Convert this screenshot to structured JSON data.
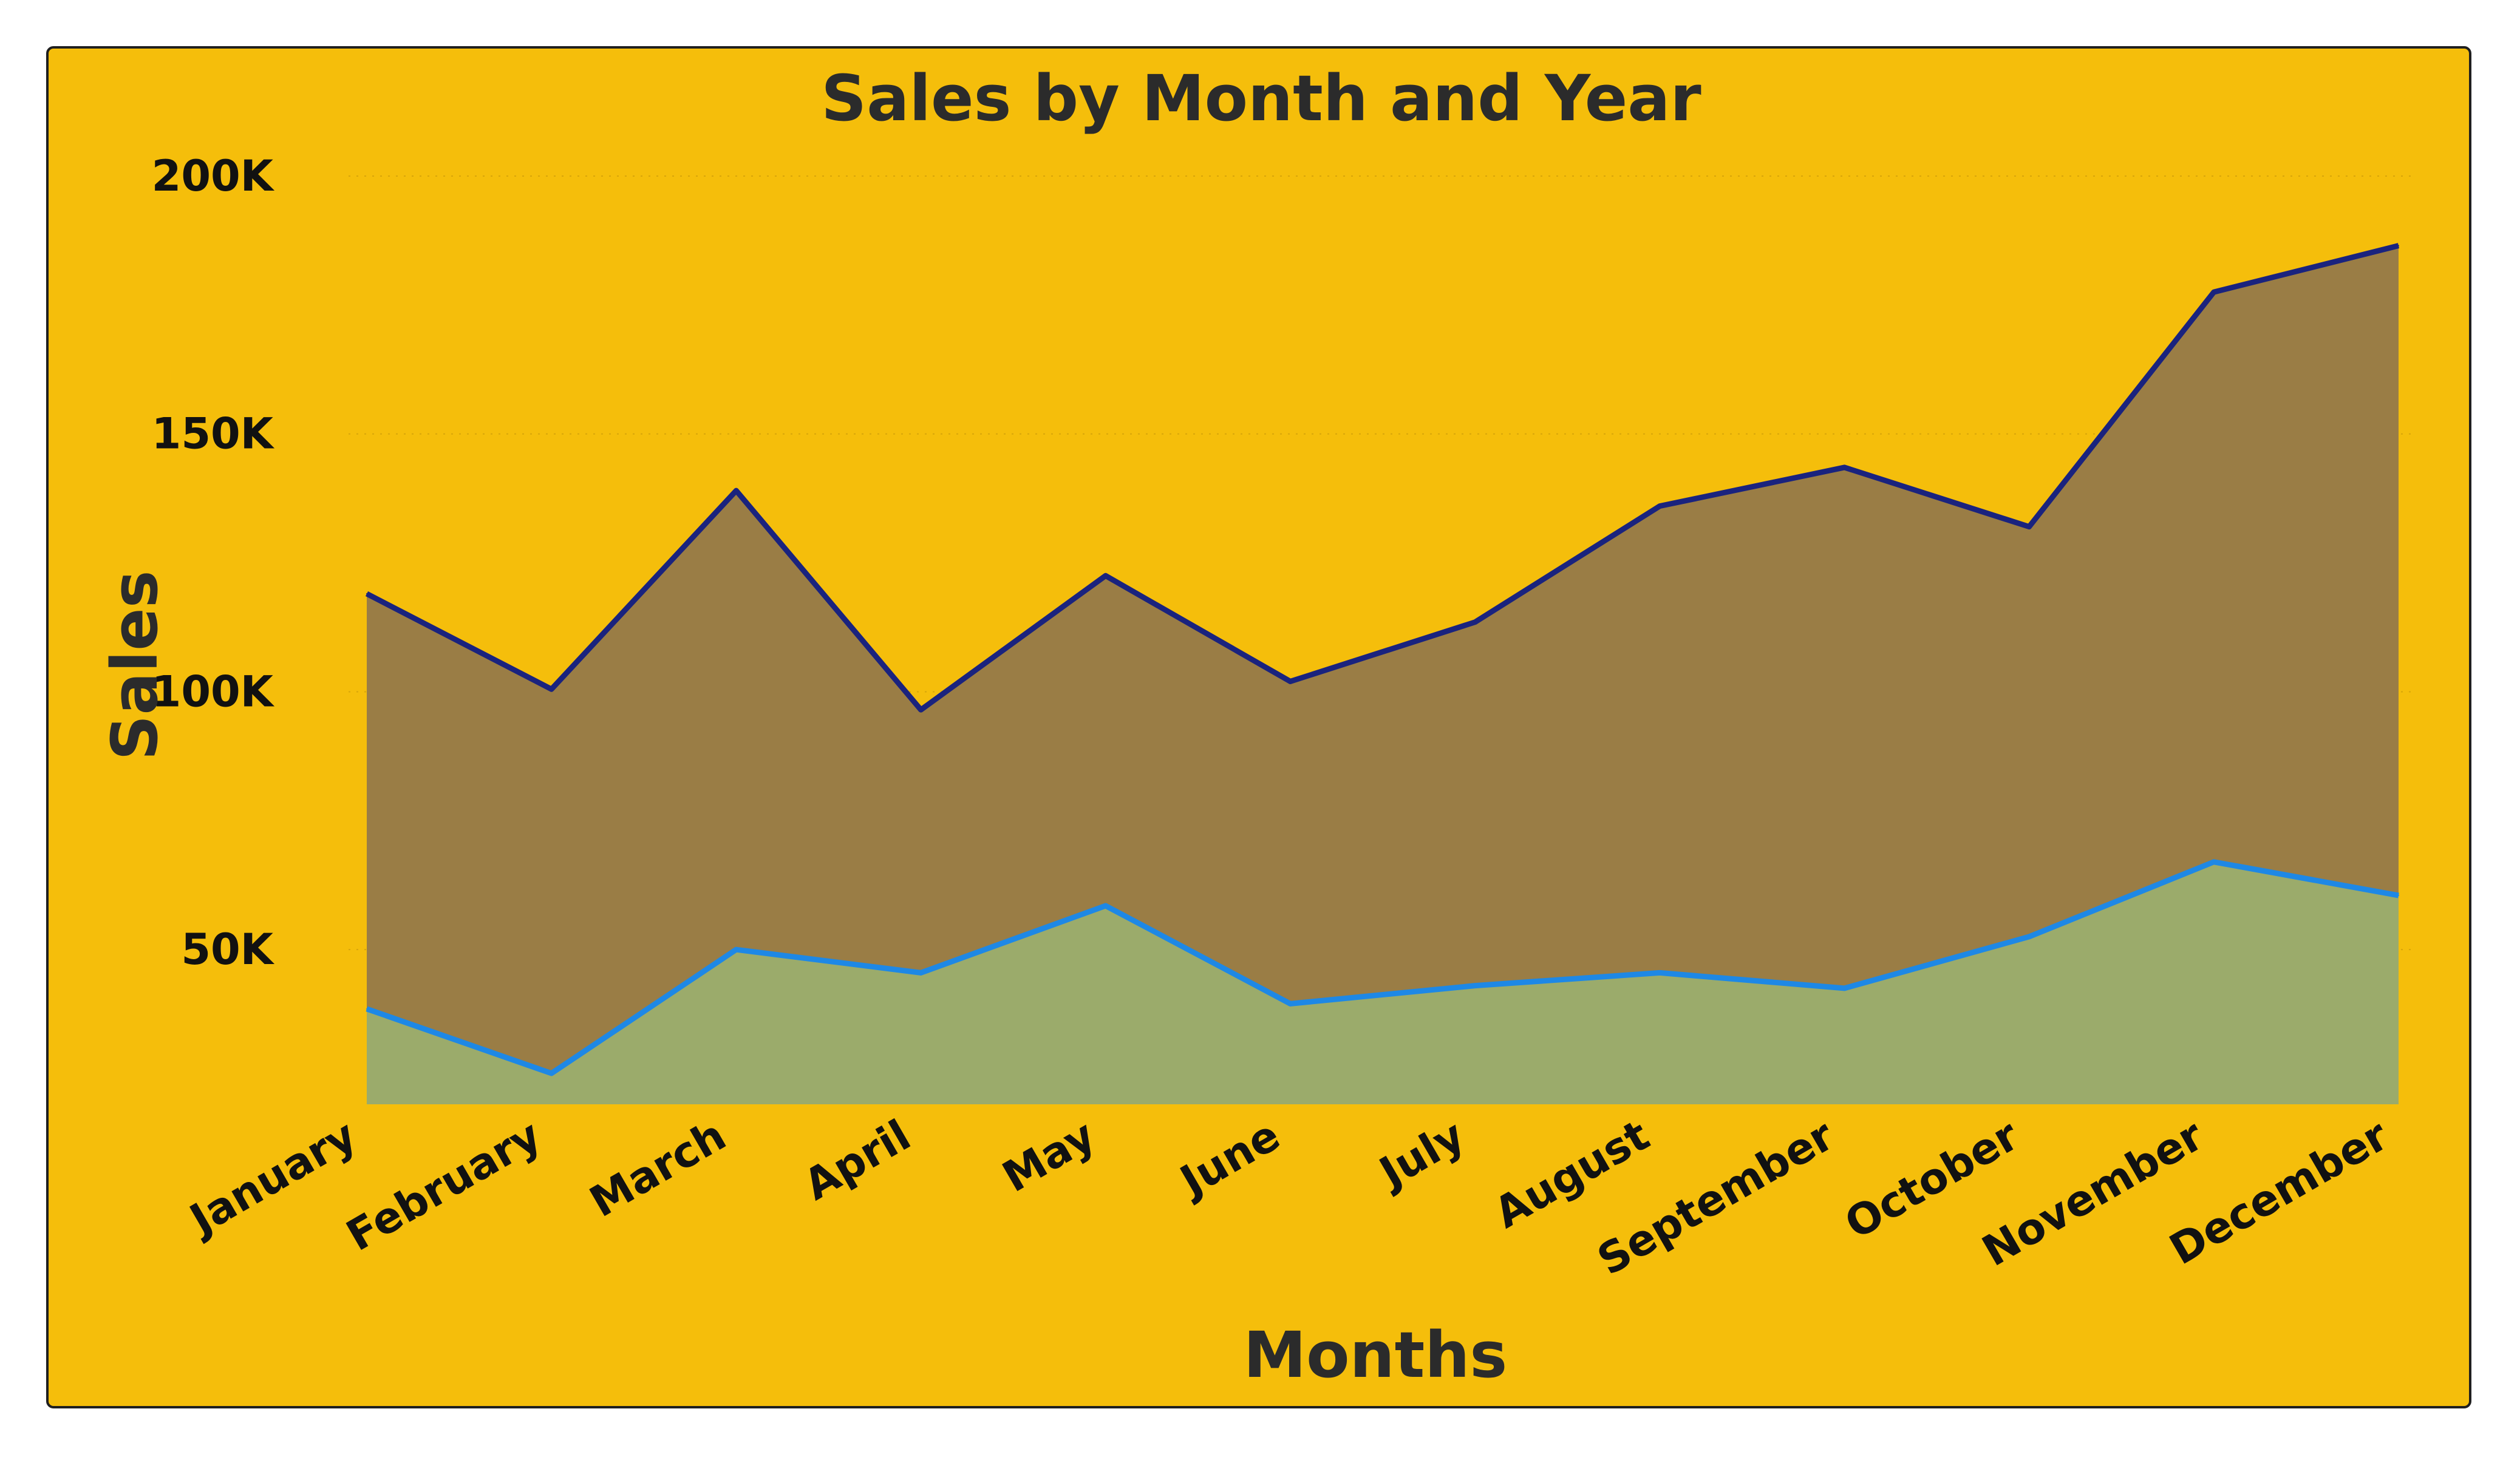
{
  "chart_data": {
    "type": "area",
    "title": "Sales by Month and Year",
    "xlabel": "Months",
    "ylabel": "Sales",
    "categories": [
      "January",
      "February",
      "March",
      "April",
      "May",
      "June",
      "July",
      "August",
      "September",
      "October",
      "November",
      "December"
    ],
    "ylim": [
      20000,
      200000
    ],
    "yticks": [
      50000,
      100000,
      150000,
      200000
    ],
    "ytick_labels": [
      "50K",
      "100K",
      "150K",
      "200K"
    ],
    "grid": true,
    "legend": "none",
    "series": [
      {
        "values": [
          119000,
          100500,
          139000,
          96500,
          122500,
          102000,
          113500,
          136000,
          143500,
          132000,
          177500,
          186500
        ],
        "line_color": "#1a237e",
        "fill_color": "#9a7d45"
      },
      {
        "values": [
          38500,
          26000,
          50000,
          45500,
          58500,
          39500,
          43000,
          45500,
          42500,
          52500,
          67000,
          60500
        ],
        "line_color": "#1e88e5",
        "fill_color": "#9bab6b"
      }
    ]
  }
}
